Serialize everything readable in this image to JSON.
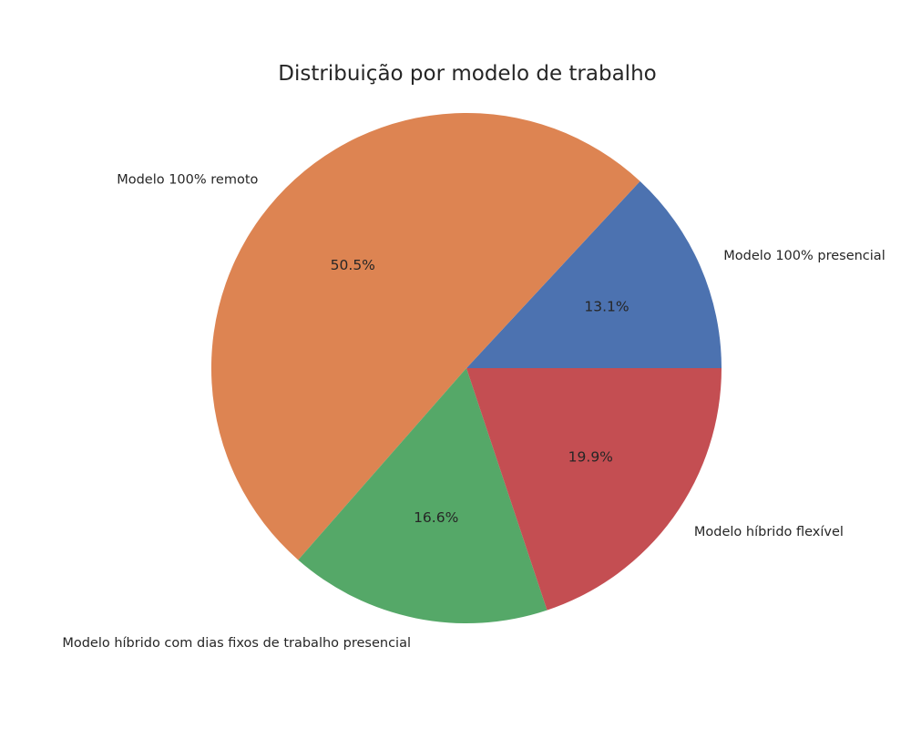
{
  "chart_data": {
    "type": "pie",
    "title": "Distribuição por modelo de trabalho",
    "categories": [
      "Modelo 100% presencial",
      "Modelo 100% remoto",
      "Modelo híbrido com dias fixos de trabalho presencial",
      "Modelo híbrido flexível"
    ],
    "values": [
      13.1,
      50.5,
      16.6,
      19.9
    ],
    "value_labels": [
      "13.1%",
      "50.5%",
      "16.6%",
      "19.9%"
    ],
    "colors": [
      "#4c72b0",
      "#dd8452",
      "#55a868",
      "#c44e52"
    ],
    "start_angle_deg": 0,
    "direction": "counterclockwise"
  }
}
